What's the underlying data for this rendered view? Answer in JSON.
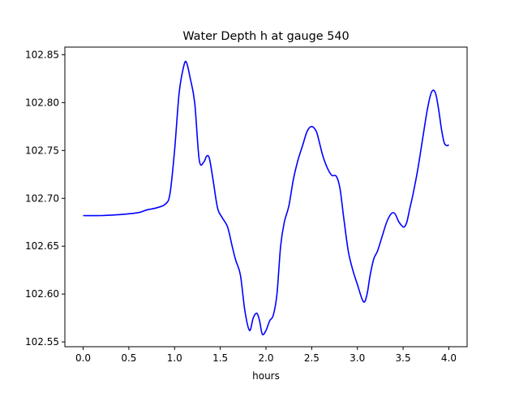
{
  "chart_data": {
    "type": "line",
    "title": "Water Depth h at gauge 540",
    "xlabel": "hours",
    "ylabel": "",
    "xlim": [
      -0.2,
      4.2
    ],
    "ylim": [
      102.545,
      102.858
    ],
    "xticks": [
      0.0,
      0.5,
      1.0,
      1.5,
      2.0,
      2.5,
      3.0,
      3.5,
      4.0
    ],
    "xtick_labels": [
      "0.0",
      "0.5",
      "1.0",
      "1.5",
      "2.0",
      "2.5",
      "3.0",
      "3.5",
      "4.0"
    ],
    "yticks": [
      102.55,
      102.6,
      102.65,
      102.7,
      102.75,
      102.8,
      102.85
    ],
    "ytick_labels": [
      "102.55",
      "102.60",
      "102.65",
      "102.70",
      "102.75",
      "102.80",
      "102.85"
    ],
    "grid": false,
    "legend": "none",
    "series": [
      {
        "color": "#0000ff",
        "x": [
          0.0,
          0.2,
          0.4,
          0.6,
          0.7,
          0.8,
          0.9,
          0.95,
          1.0,
          1.05,
          1.1,
          1.13,
          1.17,
          1.22,
          1.27,
          1.32,
          1.35,
          1.38,
          1.42,
          1.47,
          1.52,
          1.58,
          1.63,
          1.67,
          1.72,
          1.77,
          1.82,
          1.86,
          1.9,
          1.93,
          1.96,
          2.0,
          2.04,
          2.08,
          2.12,
          2.16,
          2.2,
          2.25,
          2.3,
          2.35,
          2.4,
          2.45,
          2.5,
          2.55,
          2.58,
          2.62,
          2.67,
          2.72,
          2.77,
          2.81,
          2.85,
          2.9,
          2.95,
          3.0,
          3.05,
          3.08,
          3.11,
          3.14,
          3.18,
          3.22,
          3.27,
          3.32,
          3.37,
          3.41,
          3.45,
          3.48,
          3.51,
          3.54,
          3.57,
          3.61,
          3.66,
          3.71,
          3.76,
          3.8,
          3.83,
          3.86,
          3.89,
          3.92,
          3.95,
          3.98,
          4.0
        ],
        "y": [
          102.682,
          102.682,
          102.683,
          102.685,
          102.688,
          102.69,
          102.694,
          102.705,
          102.75,
          102.81,
          102.838,
          102.842,
          102.826,
          102.8,
          102.74,
          102.738,
          102.744,
          102.742,
          102.72,
          102.69,
          102.68,
          102.67,
          102.65,
          102.635,
          102.62,
          102.582,
          102.562,
          102.575,
          102.58,
          102.572,
          102.558,
          102.562,
          102.572,
          102.578,
          102.6,
          102.65,
          102.675,
          102.692,
          102.72,
          102.74,
          102.755,
          102.77,
          102.775,
          102.77,
          102.76,
          102.745,
          102.732,
          102.724,
          102.723,
          102.71,
          102.68,
          102.645,
          102.625,
          102.61,
          102.595,
          102.592,
          102.602,
          102.62,
          102.637,
          102.645,
          102.66,
          102.675,
          102.684,
          102.684,
          102.676,
          102.672,
          102.67,
          102.675,
          102.688,
          102.705,
          102.73,
          102.76,
          102.79,
          102.808,
          102.813,
          102.808,
          102.792,
          102.772,
          102.758,
          102.755,
          102.756
        ]
      }
    ]
  }
}
